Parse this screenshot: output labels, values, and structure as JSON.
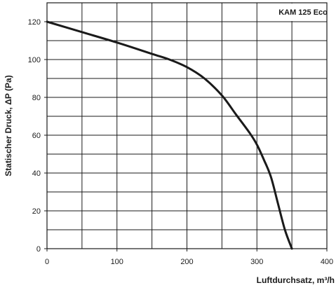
{
  "chart_data": {
    "type": "line",
    "title": "",
    "xlabel": "Luftdurchsatz, m³/h",
    "ylabel": "Statischer Druck, ΔP (Pa)",
    "xlim": [
      0,
      400
    ],
    "ylim": [
      0,
      130
    ],
    "x_ticks": [
      0,
      100,
      200,
      300,
      400
    ],
    "y_ticks": [
      0,
      20,
      40,
      60,
      80,
      100,
      120
    ],
    "grid": true,
    "legend_placement": "top-right",
    "series": [
      {
        "name": "KAM 125 Eco",
        "color": "#1a1a1a",
        "x": [
          0,
          50,
          100,
          150,
          175,
          200,
          225,
          250,
          270,
          290,
          300,
          310,
          320,
          330,
          340,
          350
        ],
        "y": [
          120,
          114.5,
          109,
          103,
          100,
          96,
          90,
          81,
          71,
          61,
          55,
          47,
          38,
          24,
          10,
          0
        ]
      }
    ]
  }
}
